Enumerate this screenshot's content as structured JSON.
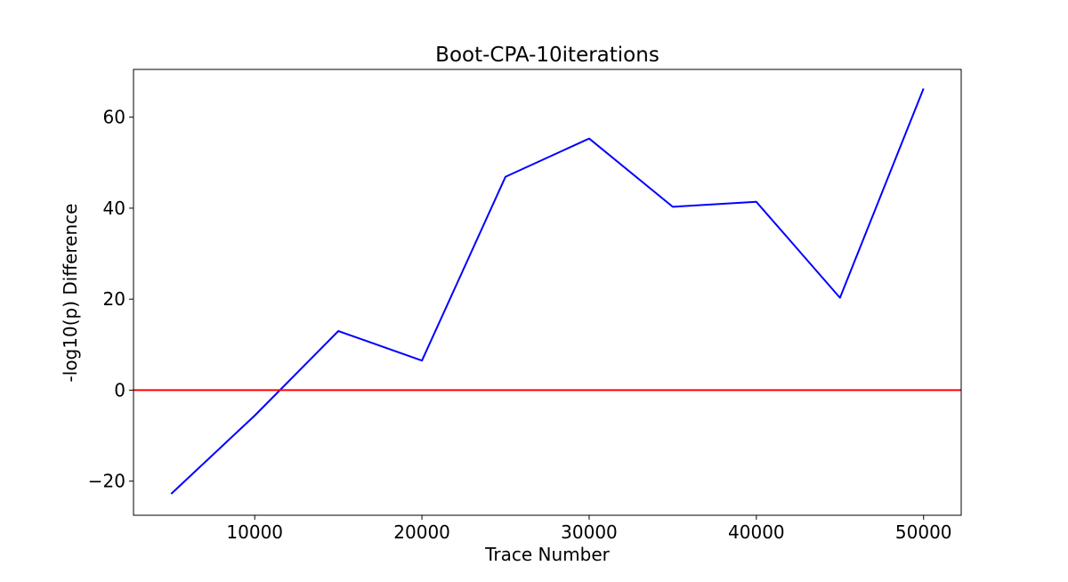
{
  "chart_data": {
    "type": "line",
    "title": "Boot-CPA-10iterations",
    "xlabel": "Trace Number",
    "ylabel": "-log10(p) Difference",
    "xlim": [
      2750,
      52250
    ],
    "ylim": [
      -27.5,
      70.5
    ],
    "xticks": [
      10000,
      20000,
      30000,
      40000,
      50000
    ],
    "xtick_labels": [
      "10000",
      "20000",
      "30000",
      "40000",
      "50000"
    ],
    "yticks": [
      -20,
      0,
      20,
      40,
      60
    ],
    "ytick_labels": [
      "−20",
      "0",
      "20",
      "40",
      "60"
    ],
    "grid": false,
    "series": [
      {
        "color": "#0000ff",
        "x": [
          5000,
          10000,
          15000,
          20000,
          25000,
          30000,
          35000,
          40000,
          45000,
          50000
        ],
        "values": [
          -22.8,
          -5.6,
          13.0,
          6.5,
          46.9,
          55.3,
          40.3,
          41.4,
          20.3,
          66.3
        ]
      }
    ],
    "reference_lines": [
      {
        "y": 0,
        "color": "#ff0000"
      }
    ]
  }
}
